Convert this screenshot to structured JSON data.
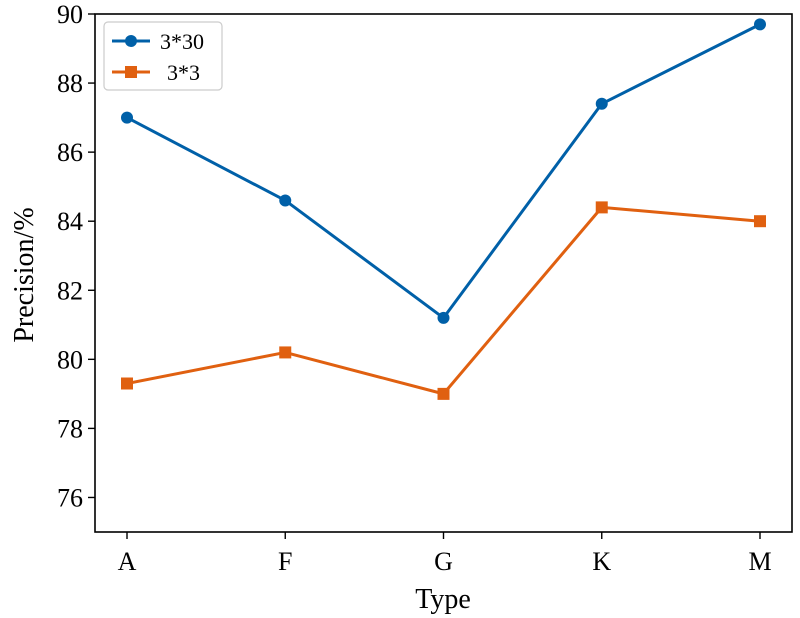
{
  "chart_data": {
    "type": "line",
    "categories": [
      "A",
      "F",
      "G",
      "K",
      "M"
    ],
    "series": [
      {
        "name": "3*30",
        "values": [
          87.0,
          84.6,
          81.2,
          87.4,
          89.7
        ],
        "color": "#0060A8",
        "marker": "circle"
      },
      {
        "name": "3*3",
        "values": [
          79.3,
          80.2,
          79.0,
          84.4,
          84.0
        ],
        "color": "#E06010",
        "marker": "square"
      }
    ],
    "xlabel": "Type",
    "ylabel": "Precision/%",
    "ylim": [
      75,
      90
    ],
    "yticks": [
      76,
      78,
      80,
      82,
      84,
      86,
      88,
      90
    ],
    "grid": false,
    "legend_position": "top-left"
  }
}
